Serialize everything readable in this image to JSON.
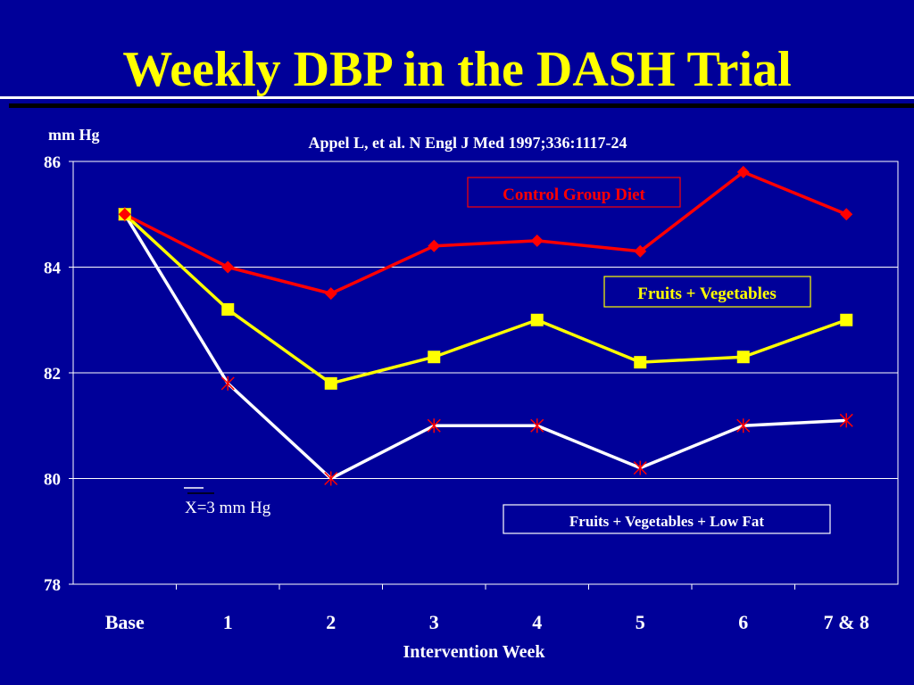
{
  "title": "Weekly DBP in the DASH Trial",
  "citation": "Appel L, et al.  N Engl J Med 1997;336:1117-24",
  "y_unit": "mm Hg",
  "colors": {
    "background": "#000099",
    "title": "#FFFF00",
    "control": "#FF0000",
    "fruits_veg": "#FFFF00",
    "fruits_veg_lowfat": "#FFFFFF",
    "lowfat_marker": "#FF0000"
  },
  "chart_data": {
    "type": "line",
    "xlabel": "Intervention Week",
    "ylabel": "mm Hg",
    "categories": [
      "Base",
      "1",
      "2",
      "3",
      "4",
      "5",
      "6",
      "7 & 8"
    ],
    "ylim": [
      78,
      86
    ],
    "yticks": [
      "78",
      "80",
      "82",
      "84",
      "86"
    ],
    "grid": true,
    "series": [
      {
        "name": "Control Group Diet",
        "marker": "diamond",
        "values": [
          85.0,
          84.0,
          83.5,
          84.4,
          84.5,
          84.3,
          85.8,
          85.0
        ]
      },
      {
        "name": "Fruits + Vegetables",
        "marker": "square",
        "values": [
          85.0,
          83.2,
          81.8,
          82.3,
          83.0,
          82.2,
          82.3,
          83.0
        ]
      },
      {
        "name": "Fruits + Vegetables + Low Fat",
        "marker": "asterisk",
        "values": [
          85.0,
          81.8,
          80.0,
          81.0,
          81.0,
          80.2,
          81.0,
          81.1
        ]
      }
    ],
    "annotation": "X=3 mm Hg"
  }
}
